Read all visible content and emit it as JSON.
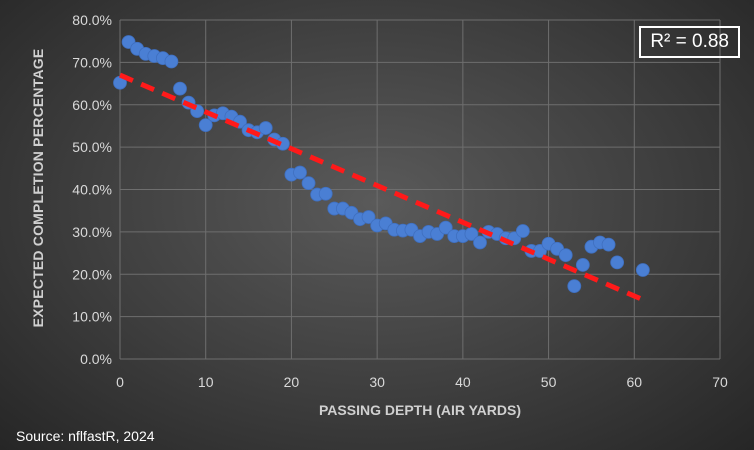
{
  "chart_data": {
    "type": "scatter",
    "title": "",
    "xlabel": "PASSING DEPTH (AIR YARDS)",
    "ylabel": "EXPECTED COMPLETION PERCENTAGE",
    "xlim": [
      0,
      70
    ],
    "ylim": [
      0,
      80
    ],
    "x_ticks": [
      "0",
      "10",
      "20",
      "30",
      "40",
      "50",
      "60",
      "70"
    ],
    "y_ticks": [
      "0.0%",
      "10.0%",
      "20.0%",
      "30.0%",
      "40.0%",
      "50.0%",
      "60.0%",
      "70.0%",
      "80.0%"
    ],
    "grid": true,
    "series": [
      {
        "name": "Expected completion %",
        "color": "#4a7fd4",
        "x": [
          0,
          1,
          2,
          3,
          4,
          5,
          6,
          7,
          8,
          9,
          10,
          11,
          12,
          13,
          14,
          15,
          16,
          17,
          18,
          19,
          20,
          21,
          22,
          23,
          24,
          25,
          26,
          27,
          28,
          29,
          30,
          31,
          32,
          33,
          34,
          35,
          36,
          37,
          38,
          39,
          40,
          41,
          42,
          43,
          44,
          45,
          46,
          47,
          48,
          49,
          50,
          51,
          52,
          53,
          54,
          55,
          56,
          57,
          58,
          61
        ],
        "y": [
          65.2,
          74.8,
          73.2,
          72.0,
          71.5,
          71.0,
          70.2,
          63.8,
          60.5,
          58.5,
          55.2,
          57.5,
          58.0,
          57.2,
          56.0,
          54.0,
          53.5,
          54.5,
          51.8,
          50.8,
          43.5,
          44.0,
          41.5,
          38.8,
          39.0,
          35.5,
          35.5,
          34.5,
          33.0,
          33.5,
          31.5,
          32.0,
          30.5,
          30.3,
          30.5,
          29.0,
          30.0,
          29.5,
          31.0,
          29.0,
          29.0,
          29.5,
          27.5,
          30.0,
          29.5,
          28.5,
          28.5,
          30.2,
          25.5,
          25.5,
          27.2,
          26.0,
          24.5,
          17.2,
          22.2,
          26.5,
          27.5,
          27.0,
          22.8,
          21.0
        ]
      }
    ],
    "trendline": {
      "type": "linear",
      "color": "#ff1a1a",
      "x": [
        0,
        61
      ],
      "y": [
        67.0,
        14.0
      ]
    },
    "annotation": "R² = 0.88"
  },
  "source": "Source: nflfastR, 2024"
}
